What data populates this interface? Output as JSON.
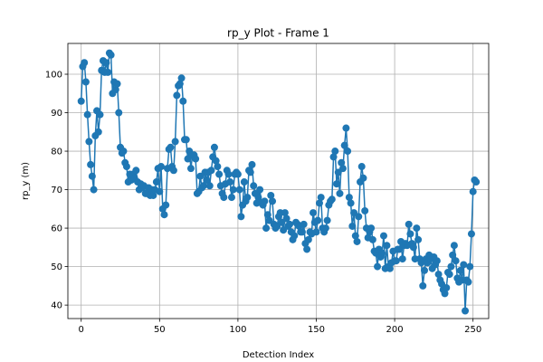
{
  "chart_data": {
    "type": "line",
    "title": "rp_y Plot - Frame 1",
    "xlabel": "Detection Index",
    "ylabel": "rp_y (m)",
    "xlim": [
      -8.5,
      260
    ],
    "ylim": [
      36.5,
      108
    ],
    "xticks": [
      0,
      50,
      100,
      150,
      200,
      250
    ],
    "yticks": [
      40,
      50,
      60,
      70,
      80,
      90,
      100
    ],
    "grid": true,
    "marker": "circle",
    "series_color": "#1f77b4",
    "x_start": 0,
    "x_step": 1,
    "values": [
      93,
      102,
      103,
      98,
      89.5,
      82.5,
      76.5,
      73.5,
      70,
      84,
      90.5,
      85,
      89.5,
      101,
      103.5,
      100.5,
      103,
      100.5,
      105.5,
      105,
      95,
      98,
      96,
      97.5,
      90,
      81,
      79.5,
      80,
      77,
      76,
      72,
      74,
      72.5,
      74,
      73,
      75,
      72,
      70,
      71.5,
      70.5,
      71,
      69,
      69,
      70.5,
      68.5,
      70,
      68.5,
      70,
      72,
      75.5,
      69.5,
      76,
      65,
      63.5,
      66,
      75.5,
      80.5,
      81,
      76,
      75,
      82.5,
      94.5,
      97,
      97.5,
      99,
      93,
      83,
      83,
      78,
      80,
      75.5,
      79,
      79,
      78,
      69,
      69.5,
      73.5,
      70.5,
      71,
      74.5,
      72.5,
      74.5,
      71,
      75,
      78.5,
      81,
      77.5,
      76,
      74,
      71,
      69,
      68,
      71.5,
      75,
      74,
      72,
      68,
      70,
      74,
      74.5,
      74,
      70,
      63,
      66,
      72,
      67,
      68,
      75,
      74.5,
      76.5,
      71,
      69,
      66.5,
      68,
      70,
      66.5,
      66,
      67,
      60,
      63.5,
      62,
      68.5,
      67,
      61,
      60,
      60.5,
      63,
      64,
      61.5,
      59.5,
      64,
      62.5,
      60.5,
      61,
      59,
      57,
      58,
      61.5,
      61,
      60.5,
      59,
      59,
      61,
      56,
      54.5,
      57,
      59,
      58.5,
      64,
      61.5,
      59,
      62,
      66.5,
      68,
      60,
      59,
      60,
      62,
      66,
      67,
      67.5,
      78.5,
      80,
      71.5,
      74.5,
      69,
      77,
      75.5,
      81.5,
      86,
      80,
      68,
      66.5,
      60.5,
      64,
      58,
      56.5,
      63,
      72,
      76,
      73,
      64.5,
      60,
      57.5,
      59,
      60,
      57,
      54,
      53.5,
      50,
      54.5,
      52.5,
      53.5,
      58,
      49.5,
      55.5,
      50,
      49.5,
      51,
      54,
      51.5,
      51.5,
      54.5,
      54.5,
      56.5,
      52,
      55.5,
      56,
      55.5,
      61,
      58.5,
      56,
      55,
      52,
      60,
      57,
      52,
      51,
      45,
      49,
      52,
      51,
      53,
      52,
      49.5,
      52.5,
      50.5,
      51.5,
      48,
      46.5,
      45.5,
      44,
      43,
      44.5,
      48.5,
      48,
      50,
      53,
      55.5,
      51.5,
      47,
      46,
      49,
      46.5,
      50.5,
      38.5,
      46.5,
      46,
      50,
      58.5,
      69.5,
      72.5,
      72
    ]
  }
}
